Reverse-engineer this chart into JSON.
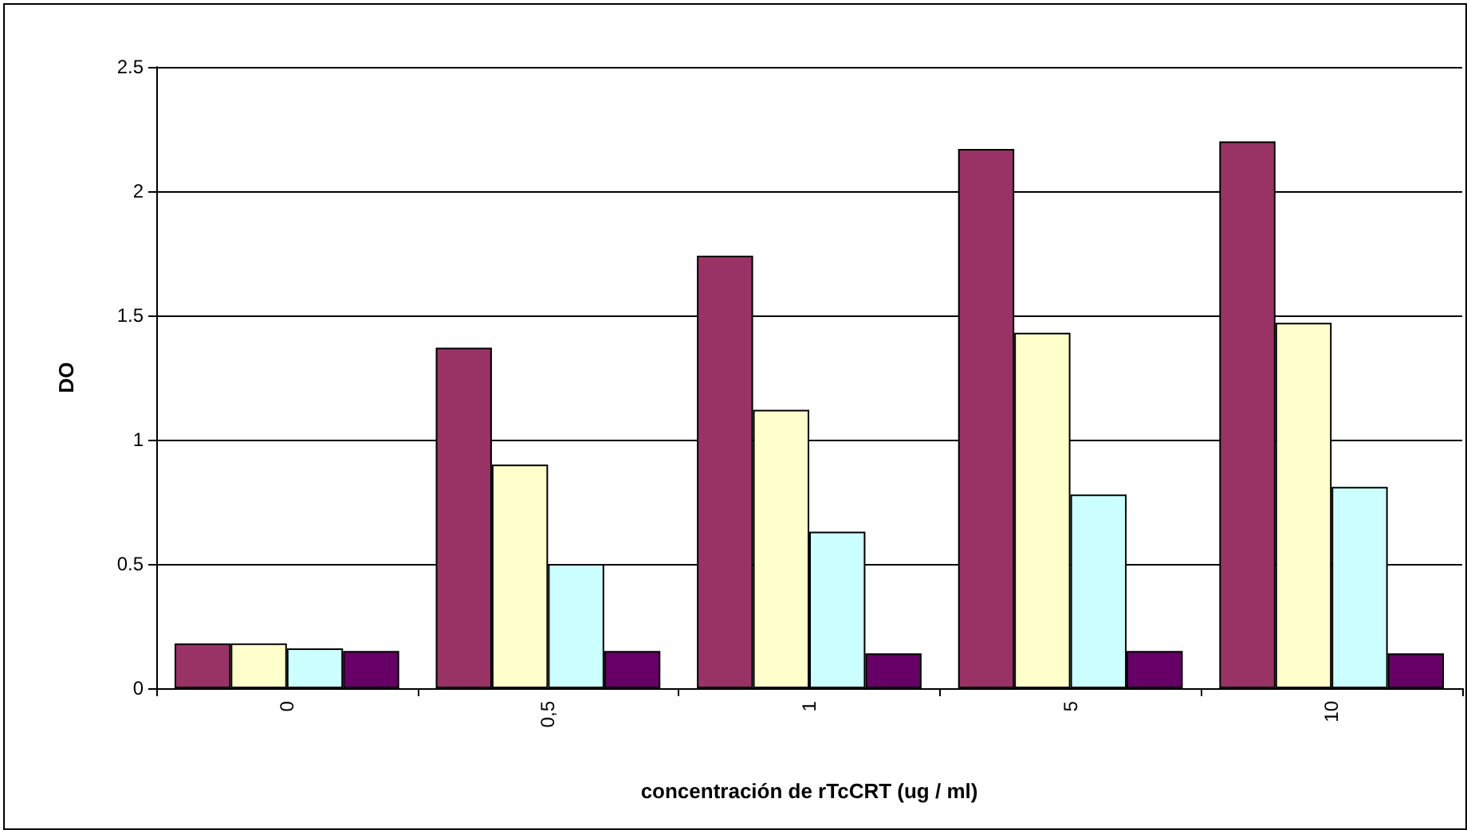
{
  "chart_data": {
    "type": "bar",
    "xlabel": "concentración de rTcCRT (ug / ml)",
    "ylabel": "DO",
    "categories": [
      "0",
      "0,5",
      "1",
      "5",
      "10"
    ],
    "series": [
      {
        "color": "#993366",
        "values": [
          0.18,
          1.37,
          1.74,
          2.17,
          2.2
        ]
      },
      {
        "color": "#ffffcc",
        "values": [
          0.18,
          0.9,
          1.12,
          1.43,
          1.47
        ]
      },
      {
        "color": "#ccffff",
        "values": [
          0.16,
          0.5,
          0.63,
          0.78,
          0.81
        ]
      },
      {
        "color": "#660066",
        "values": [
          0.15,
          0.15,
          0.14,
          0.15,
          0.14
        ]
      }
    ],
    "ylim": [
      0,
      2.5
    ],
    "yticks": [
      0,
      0.5,
      1,
      1.5,
      2,
      2.5
    ],
    "grid": "y"
  }
}
